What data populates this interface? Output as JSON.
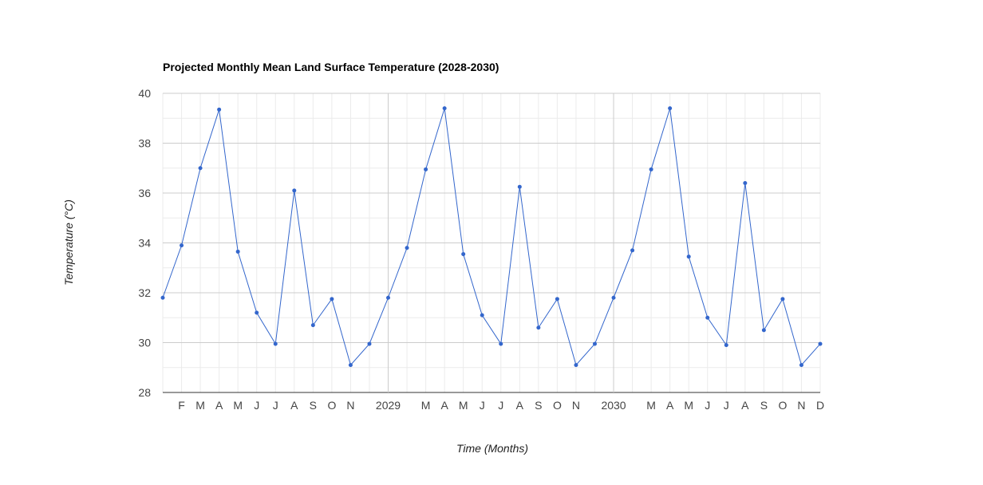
{
  "chart_data": {
    "type": "line",
    "title": "Projected Monthly Mean Land Surface Temperature (2028-2030)",
    "xlabel": "Time (Months)",
    "ylabel": "Temperature (°C)",
    "ylim": [
      28,
      40
    ],
    "yticks": [
      28,
      30,
      32,
      34,
      36,
      38,
      40
    ],
    "grid": true,
    "legend": "none",
    "line_color": "#3366cc",
    "x_tick_labels": [
      "",
      "F",
      "M",
      "A",
      "M",
      "J",
      "J",
      "A",
      "S",
      "O",
      "N",
      "",
      "2029",
      "",
      "M",
      "A",
      "M",
      "J",
      "J",
      "A",
      "S",
      "O",
      "N",
      "",
      "2030",
      "",
      "M",
      "A",
      "M",
      "J",
      "J",
      "A",
      "S",
      "O",
      "N",
      "D"
    ],
    "year_boundaries": [
      12,
      24
    ],
    "x": [
      "2028-01",
      "2028-02",
      "2028-03",
      "2028-04",
      "2028-05",
      "2028-06",
      "2028-07",
      "2028-08",
      "2028-09",
      "2028-10",
      "2028-11",
      "2028-12",
      "2029-01",
      "2029-02",
      "2029-03",
      "2029-04",
      "2029-05",
      "2029-06",
      "2029-07",
      "2029-08",
      "2029-09",
      "2029-10",
      "2029-11",
      "2029-12",
      "2030-01",
      "2030-02",
      "2030-03",
      "2030-04",
      "2030-05",
      "2030-06",
      "2030-07",
      "2030-08",
      "2030-09",
      "2030-10",
      "2030-11",
      "2030-12"
    ],
    "series": [
      {
        "values": [
          31.8,
          33.9,
          37.0,
          39.35,
          33.65,
          31.2,
          29.95,
          36.1,
          30.7,
          31.75,
          29.1,
          29.95,
          31.8,
          33.8,
          36.95,
          39.4,
          33.55,
          31.1,
          29.95,
          36.25,
          30.6,
          31.75,
          29.1,
          29.95,
          31.8,
          33.7,
          36.95,
          39.4,
          33.45,
          31.0,
          29.9,
          36.4,
          30.5,
          31.75,
          29.1,
          29.95
        ]
      }
    ]
  }
}
